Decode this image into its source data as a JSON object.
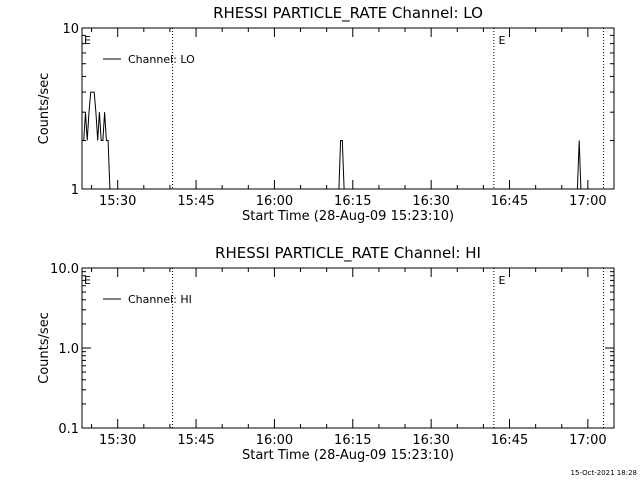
{
  "footer": {
    "timestamp": "15-Oct-2021 18:28"
  },
  "chart_data": [
    {
      "type": "line",
      "title": "RHESSI PARTICLE_RATE Channel: LO",
      "xlabel": "Start Time (28-Aug-09 15:23:10)",
      "ylabel": "Counts/sec",
      "yscale": "log",
      "ylim": [
        1,
        10
      ],
      "yticks": [
        1,
        10
      ],
      "ytick_labels": [
        "1",
        "10"
      ],
      "xlim": [
        "15:23:10",
        "17:05:00"
      ],
      "xticks": [
        "15:30",
        "15:45",
        "16:00",
        "16:15",
        "16:30",
        "16:45",
        "17:00"
      ],
      "legend": {
        "position": "top-left",
        "entries": [
          "Channel: LO"
        ]
      },
      "markers": [
        "E",
        "E"
      ],
      "event_times": [
        "15:23:10",
        "16:42:30"
      ],
      "vlines": [
        "15:40:30",
        "16:42:00",
        "17:03:00"
      ],
      "series": [
        {
          "name": "Channel: LO",
          "color": "#000000",
          "x": [
            "15:23:10",
            "15:23:30",
            "15:23:50",
            "15:24:10",
            "15:24:30",
            "15:24:50",
            "15:25:10",
            "15:25:30",
            "15:25:50",
            "15:26:10",
            "15:26:30",
            "15:26:50",
            "15:27:10",
            "15:27:30",
            "15:27:50",
            "15:28:10",
            "15:28:30",
            "15:28:50",
            "15:29:10",
            "16:12:20",
            "16:12:40",
            "16:13:00",
            "16:13:20",
            "16:13:40",
            "16:57:40",
            "16:58:00",
            "16:58:20",
            "16:58:40",
            "16:59:00"
          ],
          "y": [
            2,
            2,
            3,
            2,
            3,
            4,
            4,
            4,
            3,
            2,
            3,
            2,
            2,
            3,
            2,
            2,
            1,
            1,
            1,
            1,
            2,
            2,
            1,
            1,
            1,
            1,
            2,
            1,
            1
          ]
        }
      ]
    },
    {
      "type": "line",
      "title": "RHESSI PARTICLE_RATE Channel: HI",
      "xlabel": "Start Time (28-Aug-09 15:23:10)",
      "ylabel": "Counts/sec",
      "yscale": "log",
      "ylim": [
        0.1,
        10
      ],
      "yticks": [
        0.1,
        1.0,
        10.0
      ],
      "ytick_labels": [
        "0.1",
        "1.0",
        "10.0"
      ],
      "xlim": [
        "15:23:10",
        "17:05:00"
      ],
      "xticks": [
        "15:30",
        "15:45",
        "16:00",
        "16:15",
        "16:30",
        "16:45",
        "17:00"
      ],
      "legend": {
        "position": "top-left",
        "entries": [
          "Channel: HI"
        ]
      },
      "markers": [
        "E",
        "E"
      ],
      "event_times": [
        "15:23:10",
        "16:42:30"
      ],
      "vlines": [
        "15:40:30",
        "16:42:00",
        "17:03:00"
      ],
      "series": [
        {
          "name": "Channel: HI",
          "color": "#000000",
          "x": [],
          "y": []
        }
      ]
    }
  ]
}
